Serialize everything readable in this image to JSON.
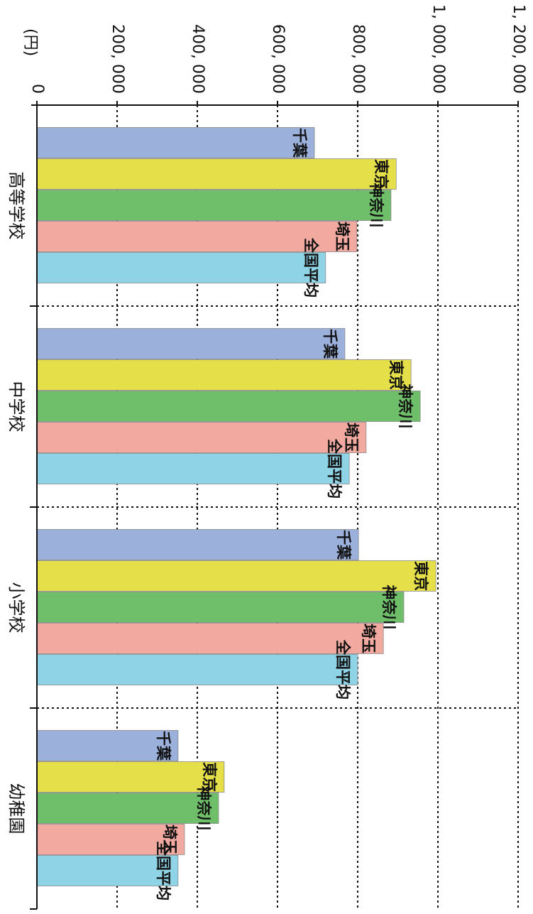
{
  "chart_data": {
    "type": "bar",
    "orientation": "horizontal",
    "ylabel": "(円)",
    "categories": [
      "高等学校",
      "中学校",
      "小学校",
      "幼稚園"
    ],
    "series": [
      {
        "name": "千葉",
        "color": "#9cb0dc",
        "values": [
          692000,
          768000,
          802000,
          352000
        ]
      },
      {
        "name": "東京",
        "color": "#e5e04a",
        "values": [
          896000,
          933000,
          995000,
          467000
        ]
      },
      {
        "name": "神奈川",
        "color": "#6fbf6a",
        "values": [
          883000,
          956000,
          915000,
          453000
        ]
      },
      {
        "name": "埼玉",
        "color": "#f2aaa0",
        "values": [
          798000,
          821000,
          864000,
          368000
        ]
      },
      {
        "name": "全国平均",
        "color": "#8fd3e6",
        "values": [
          720000,
          779000,
          800000,
          352000
        ]
      }
    ],
    "ylim": [
      0,
      1200000
    ],
    "yticks": [
      0,
      {
        "value": 200000,
        "label": "200, 000"
      },
      {
        "value": 400000,
        "label": "400, 000"
      },
      {
        "value": 600000,
        "label": "600, 000"
      },
      {
        "value": 800000,
        "label": "800, 000"
      },
      {
        "value": 1000000,
        "label": "1, 000, 000"
      },
      {
        "value": 1200000,
        "label": "1, 200, 000"
      }
    ],
    "grid": true
  }
}
